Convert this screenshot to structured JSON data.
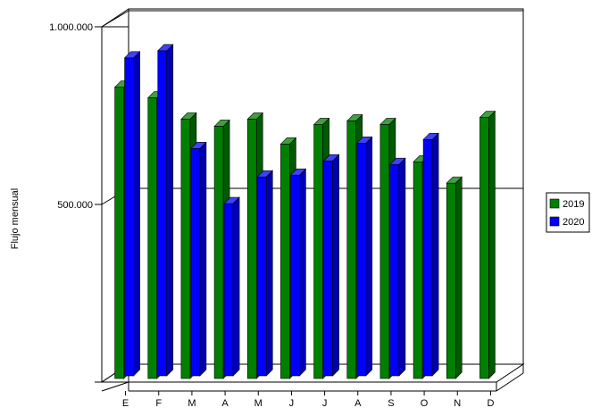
{
  "chart_data": {
    "type": "bar",
    "style": "3d-clustered",
    "title": "",
    "xlabel": "",
    "ylabel": "Flujo mensual",
    "ylim": [
      0,
      1000000
    ],
    "yticks": [
      500000,
      1000000
    ],
    "ytick_labels": [
      "500.000",
      "1.000.000"
    ],
    "grid": true,
    "legend_position": "right",
    "categories": [
      "E",
      "F",
      "M",
      "A",
      "M",
      "J",
      "J",
      "A",
      "S",
      "O",
      "N",
      "D"
    ],
    "series": [
      {
        "name": "2019",
        "color": "#008000",
        "values": [
          830000,
          800000,
          740000,
          720000,
          740000,
          670000,
          725000,
          735000,
          725000,
          620000,
          560000,
          745000
        ]
      },
      {
        "name": "2020",
        "color": "#0000ff",
        "values": [
          905000,
          925000,
          650000,
          495000,
          570000,
          575000,
          615000,
          665000,
          605000,
          675000,
          null,
          null
        ]
      }
    ]
  }
}
